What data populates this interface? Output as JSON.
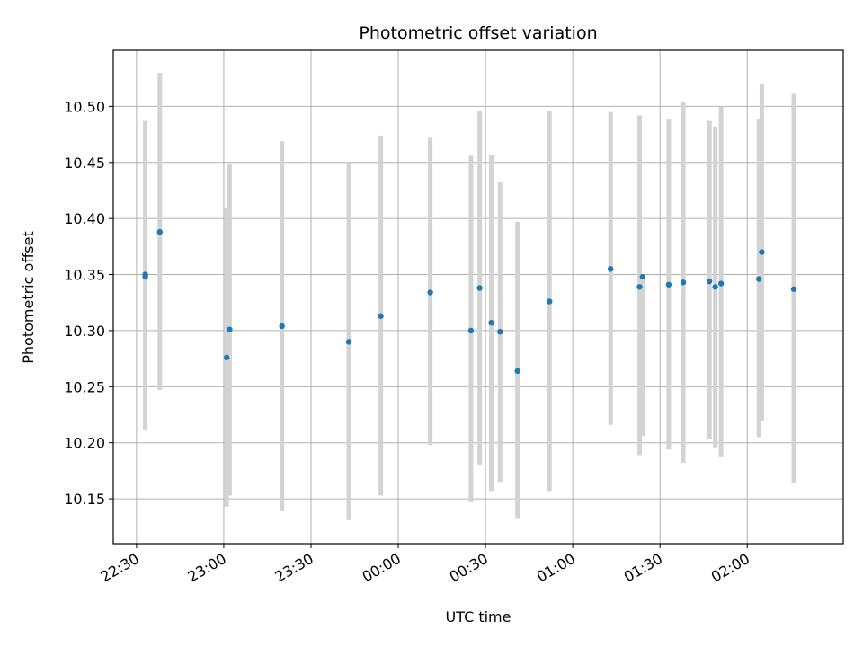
{
  "chart_data": {
    "type": "scatter",
    "title": "Photometric offset variation",
    "xlabel": "UTC time",
    "ylabel": "Photometric offset",
    "grid": true,
    "legend": "none",
    "x_range": [
      "22:22",
      "02:33"
    ],
    "ylim": [
      10.11,
      10.55
    ],
    "x_ticks": [
      "22:30",
      "23:00",
      "23:30",
      "00:00",
      "00:30",
      "01:00",
      "01:30",
      "02:00"
    ],
    "y_ticks": [
      "10.15",
      "10.20",
      "10.25",
      "10.30",
      "10.35",
      "10.40",
      "10.45",
      "10.50"
    ],
    "colors": {
      "point": "#1f77b4",
      "errorbar": "#d3d3d3",
      "grid": "#b0b0b0"
    },
    "points": [
      {
        "time": "22:33",
        "y": 10.35,
        "ylow": 10.211,
        "yhigh": 10.487
      },
      {
        "time": "22:33",
        "y": 10.348
      },
      {
        "time": "22:38",
        "y": 10.388,
        "ylow": 10.247,
        "yhigh": 10.53
      },
      {
        "time": "23:01",
        "y": 10.276,
        "ylow": 10.143,
        "yhigh": 10.409
      },
      {
        "time": "23:02",
        "y": 10.301,
        "ylow": 10.153,
        "yhigh": 10.449
      },
      {
        "time": "23:20",
        "y": 10.304,
        "ylow": 10.139,
        "yhigh": 10.469
      },
      {
        "time": "23:43",
        "y": 10.29,
        "ylow": 10.131,
        "yhigh": 10.45
      },
      {
        "time": "23:54",
        "y": 10.313,
        "ylow": 10.153,
        "yhigh": 10.474
      },
      {
        "time": "00:11",
        "y": 10.334,
        "ylow": 10.198,
        "yhigh": 10.472
      },
      {
        "time": "00:25",
        "y": 10.3,
        "ylow": 10.147,
        "yhigh": 10.456
      },
      {
        "time": "00:28",
        "y": 10.338,
        "ylow": 10.18,
        "yhigh": 10.496
      },
      {
        "time": "00:32",
        "y": 10.307,
        "ylow": 10.157,
        "yhigh": 10.457
      },
      {
        "time": "00:35",
        "y": 10.299,
        "ylow": 10.165,
        "yhigh": 10.433
      },
      {
        "time": "00:41",
        "y": 10.264,
        "ylow": 10.132,
        "yhigh": 10.397
      },
      {
        "time": "00:52",
        "y": 10.326,
        "ylow": 10.157,
        "yhigh": 10.496
      },
      {
        "time": "01:13",
        "y": 10.355,
        "ylow": 10.216,
        "yhigh": 10.495
      },
      {
        "time": "01:23",
        "y": 10.339,
        "ylow": 10.189,
        "yhigh": 10.492
      },
      {
        "time": "01:24",
        "y": 10.348,
        "ylow": 10.206
      },
      {
        "time": "01:33",
        "y": 10.341,
        "ylow": 10.194,
        "yhigh": 10.489
      },
      {
        "time": "01:38",
        "y": 10.343,
        "ylow": 10.182,
        "yhigh": 10.504
      },
      {
        "time": "01:47",
        "y": 10.344,
        "ylow": 10.203,
        "yhigh": 10.487
      },
      {
        "time": "01:49",
        "y": 10.339,
        "ylow": 10.196,
        "yhigh": 10.482
      },
      {
        "time": "01:51",
        "y": 10.342,
        "ylow": 10.187,
        "yhigh": 10.5
      },
      {
        "time": "02:04",
        "y": 10.346,
        "ylow": 10.205,
        "yhigh": 10.489
      },
      {
        "time": "02:05",
        "y": 10.37,
        "ylow": 10.219,
        "yhigh": 10.52
      },
      {
        "time": "02:16",
        "y": 10.337,
        "ylow": 10.164,
        "yhigh": 10.511
      }
    ]
  }
}
